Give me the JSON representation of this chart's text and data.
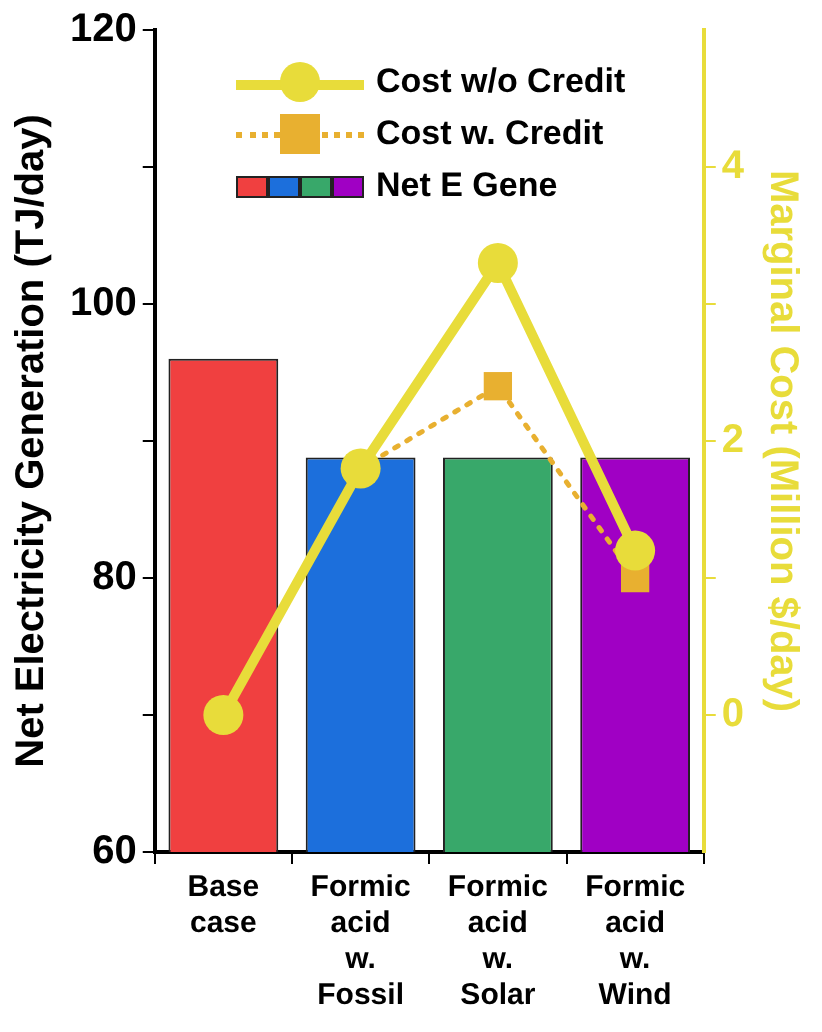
{
  "chart_data": {
    "type": "bar",
    "categories": [
      "Base case",
      "Formic acid w. Fossil",
      "Formic acid w. Solar",
      "Formic acid w. Wind"
    ],
    "ylabel": "Net Electricity Generation (TJ/day)",
    "y2label": "Marginal Cost (Million $/day)",
    "ylim": [
      60,
      120
    ],
    "yticks": [
      60,
      {
        "value": 70,
        "label": null
      },
      80,
      {
        "value": 90,
        "label": null
      },
      100,
      {
        "value": 110,
        "label": null
      },
      120
    ],
    "y2lim": [
      -1,
      5
    ],
    "y2ticks": [
      0,
      {
        "value": 1,
        "label": null
      },
      2,
      {
        "value": 3,
        "label": null
      },
      4
    ],
    "legend": "top",
    "grid": false,
    "series": [
      {
        "name": "Net E Gene",
        "colors": [
          "#f04040",
          "#1c6fdc",
          "#38a86a",
          "#a000c4"
        ],
        "values": [
          96,
          88.8,
          88.8,
          88.8
        ]
      },
      {
        "name": "Cost w/o Credit",
        "type": "line",
        "axis": "y2",
        "color": "#e8dc3a",
        "marker": "circle",
        "line_style": "solid",
        "values": [
          0,
          1.8,
          3.3,
          1.2
        ]
      },
      {
        "name": "Cost w. Credit",
        "type": "line",
        "axis": "y2",
        "color": "#e8b030",
        "marker": "square",
        "line_style": "dotted",
        "values": [
          0,
          1.8,
          2.4,
          1.0
        ]
      }
    ]
  }
}
